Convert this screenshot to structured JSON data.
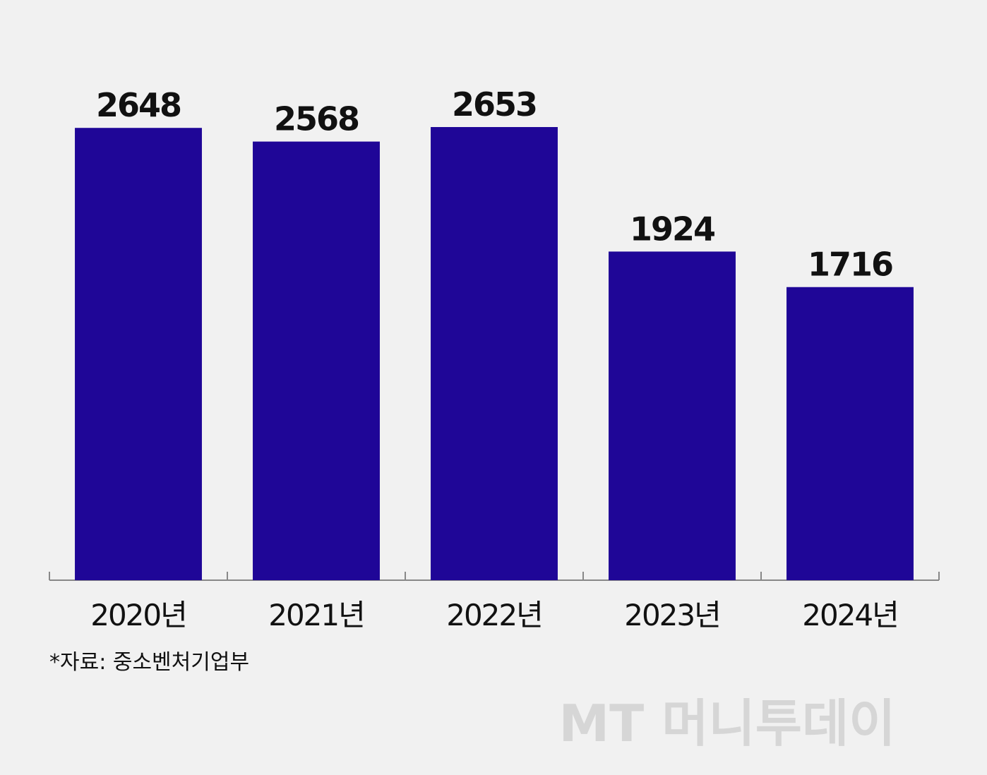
{
  "chart_data": {
    "type": "bar",
    "categories": [
      "2020년",
      "2021년",
      "2022년",
      "2023년",
      "2024년"
    ],
    "values": [
      2648,
      2568,
      2653,
      1924,
      1716
    ],
    "color": "#1f0697",
    "source": "*자료: 중소벤처기업부",
    "watermark": "MT 머니투데이"
  }
}
